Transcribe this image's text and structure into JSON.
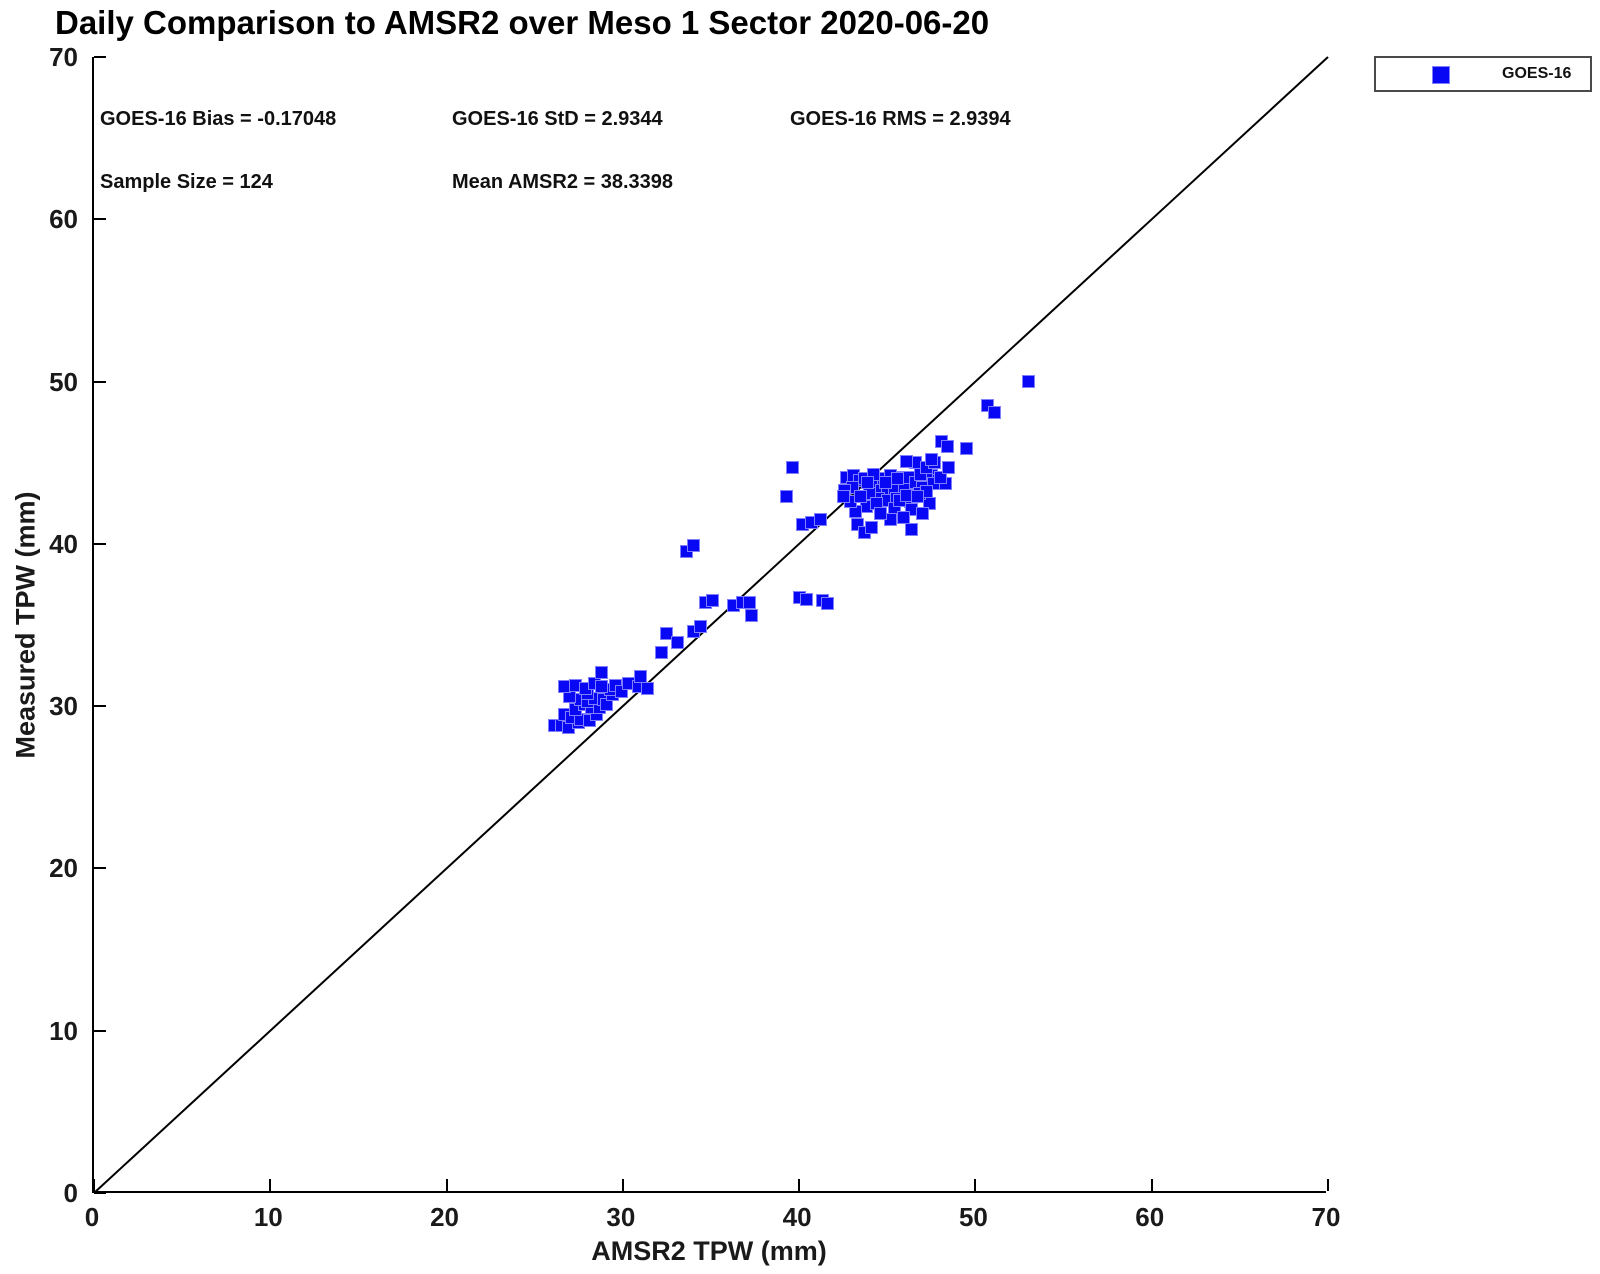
{
  "title": "Daily Comparison to AMSR2 over Meso 1 Sector 2020-06-20",
  "chart_data": {
    "type": "scatter",
    "title": "Daily Comparison to AMSR2 over Meso 1 Sector 2020-06-20",
    "xlabel": "AMSR2 TPW (mm)",
    "ylabel": "Measured TPW (mm)",
    "xlim": [
      0,
      70
    ],
    "ylim": [
      0,
      70
    ],
    "xticks": [
      0,
      10,
      20,
      30,
      40,
      50,
      60,
      70
    ],
    "yticks": [
      0,
      10,
      20,
      30,
      40,
      50,
      60,
      70
    ],
    "grid": false,
    "legend_position": "top-right-outside",
    "stats": {
      "bias": "GOES-16 Bias = -0.17048",
      "std": "GOES-16 StD = 2.9344",
      "rms": "GOES-16 RMS = 2.9394",
      "sample_size": "Sample Size = 124",
      "mean_amsr2": "Mean AMSR2 = 38.3398"
    },
    "identity_line": {
      "from": [
        0,
        0
      ],
      "to": [
        70,
        70
      ],
      "color": "#000000",
      "width": 2
    },
    "series": [
      {
        "name": "GOES-16",
        "marker": "square",
        "color": "#0808f5",
        "edge_color": "#8080ff",
        "points": [
          [
            26.1,
            28.8
          ],
          [
            26.5,
            28.8
          ],
          [
            26.9,
            28.7
          ],
          [
            27.5,
            29.0
          ],
          [
            26.7,
            29.5
          ],
          [
            27.1,
            29.3
          ],
          [
            27.6,
            29.2
          ],
          [
            28.1,
            29.1
          ],
          [
            28.5,
            29.5
          ],
          [
            27.3,
            29.8
          ],
          [
            27.8,
            30.1
          ],
          [
            28.2,
            29.9
          ],
          [
            28.7,
            29.9
          ],
          [
            27.6,
            30.4
          ],
          [
            28.0,
            30.3
          ],
          [
            28.4,
            30.5
          ],
          [
            28.9,
            30.4
          ],
          [
            29.1,
            30.1
          ],
          [
            29.4,
            30.7
          ],
          [
            29.3,
            31.0
          ],
          [
            28.0,
            30.8
          ],
          [
            27.0,
            30.6
          ],
          [
            26.7,
            31.2
          ],
          [
            27.3,
            31.3
          ],
          [
            27.9,
            31.1
          ],
          [
            28.4,
            31.4
          ],
          [
            28.8,
            31.2
          ],
          [
            28.8,
            32.1
          ],
          [
            29.6,
            31.3
          ],
          [
            29.9,
            30.9
          ],
          [
            30.3,
            31.4
          ],
          [
            30.9,
            31.2
          ],
          [
            31.4,
            31.1
          ],
          [
            31.0,
            31.8
          ],
          [
            32.2,
            33.3
          ],
          [
            32.5,
            34.5
          ],
          [
            33.1,
            33.9
          ],
          [
            34.0,
            34.6
          ],
          [
            34.4,
            34.9
          ],
          [
            33.6,
            39.5
          ],
          [
            34.0,
            39.9
          ],
          [
            34.7,
            36.4
          ],
          [
            35.1,
            36.5
          ],
          [
            36.3,
            36.2
          ],
          [
            36.8,
            36.4
          ],
          [
            37.2,
            36.4
          ],
          [
            37.3,
            35.6
          ],
          [
            40.0,
            36.7
          ],
          [
            40.4,
            36.6
          ],
          [
            41.3,
            36.5
          ],
          [
            41.6,
            36.3
          ],
          [
            39.6,
            44.7
          ],
          [
            39.3,
            42.9
          ],
          [
            40.2,
            41.2
          ],
          [
            40.7,
            41.3
          ],
          [
            41.2,
            41.5
          ],
          [
            42.7,
            44.1
          ],
          [
            43.1,
            44.2
          ],
          [
            43.4,
            43.9
          ],
          [
            43.0,
            43.5
          ],
          [
            42.6,
            43.3
          ],
          [
            43.7,
            44.0
          ],
          [
            44.0,
            43.4
          ],
          [
            44.3,
            43.6
          ],
          [
            44.7,
            43.3
          ],
          [
            45.0,
            43.4
          ],
          [
            45.4,
            43.4
          ],
          [
            45.8,
            44.1
          ],
          [
            46.0,
            43.5
          ],
          [
            46.2,
            44.1
          ],
          [
            46.6,
            43.8
          ],
          [
            47.0,
            43.5
          ],
          [
            47.5,
            44.2
          ],
          [
            47.9,
            43.9
          ],
          [
            44.5,
            42.8
          ],
          [
            45.0,
            42.7
          ],
          [
            45.5,
            42.8
          ],
          [
            46.3,
            42.6
          ],
          [
            47.4,
            42.5
          ],
          [
            44.0,
            43.1
          ],
          [
            43.8,
            42.3
          ],
          [
            44.4,
            42.5
          ],
          [
            45.4,
            42.2
          ],
          [
            45.7,
            42.7
          ],
          [
            46.4,
            42.5
          ],
          [
            46.8,
            43.1
          ],
          [
            47.6,
            43.7
          ],
          [
            48.3,
            43.7
          ],
          [
            43.2,
            42.0
          ],
          [
            46.4,
            42.1
          ],
          [
            47.0,
            41.9
          ],
          [
            43.3,
            41.2
          ],
          [
            43.7,
            40.7
          ],
          [
            44.1,
            41.0
          ],
          [
            46.4,
            40.9
          ],
          [
            45.2,
            41.5
          ],
          [
            42.9,
            42.6
          ],
          [
            44.8,
            44.0
          ],
          [
            45.2,
            44.2
          ],
          [
            46.9,
            44.3
          ],
          [
            44.6,
            41.9
          ],
          [
            45.9,
            41.6
          ],
          [
            43.5,
            42.9
          ],
          [
            44.2,
            44.3
          ],
          [
            46.1,
            43.0
          ],
          [
            47.2,
            43.2
          ],
          [
            42.5,
            42.9
          ],
          [
            48.0,
            44.1
          ],
          [
            44.9,
            43.8
          ],
          [
            45.6,
            44.0
          ],
          [
            46.7,
            42.9
          ],
          [
            43.9,
            43.8
          ],
          [
            46.6,
            45.0
          ],
          [
            47.2,
            44.7
          ],
          [
            47.7,
            45.0
          ],
          [
            46.1,
            45.1
          ],
          [
            48.1,
            46.3
          ],
          [
            48.4,
            46.0
          ],
          [
            49.5,
            45.9
          ],
          [
            47.5,
            45.2
          ],
          [
            48.5,
            44.7
          ],
          [
            50.7,
            48.5
          ],
          [
            51.1,
            48.1
          ],
          [
            53.0,
            50.0
          ]
        ]
      }
    ]
  }
}
